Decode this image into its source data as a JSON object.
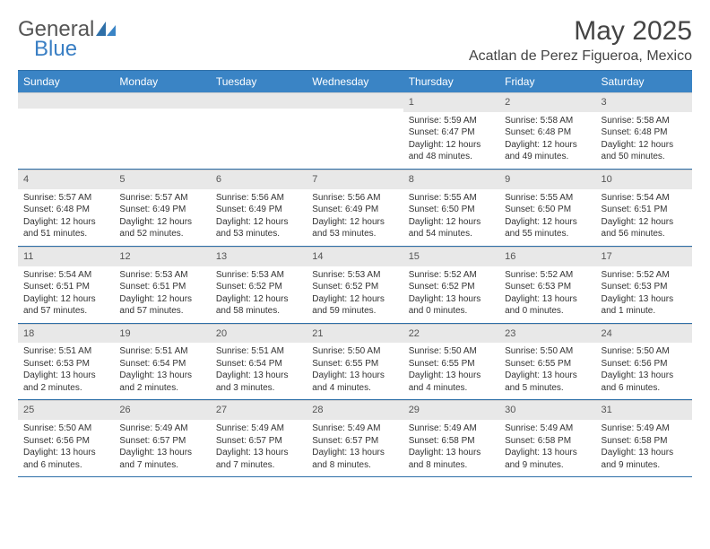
{
  "logo": {
    "general": "General",
    "blue": "Blue"
  },
  "title": "May 2025",
  "location": "Acatlan de Perez Figueroa, Mexico",
  "colors": {
    "header_bg": "#3a84c5",
    "header_border": "#2e6fa8",
    "daynum_bg": "#e8e8e8",
    "logo_blue": "#3a7fc4"
  },
  "day_headers": [
    "Sunday",
    "Monday",
    "Tuesday",
    "Wednesday",
    "Thursday",
    "Friday",
    "Saturday"
  ],
  "weeks": [
    [
      {
        "num": "",
        "sunrise": "",
        "sunset": "",
        "daylight1": "",
        "daylight2": ""
      },
      {
        "num": "",
        "sunrise": "",
        "sunset": "",
        "daylight1": "",
        "daylight2": ""
      },
      {
        "num": "",
        "sunrise": "",
        "sunset": "",
        "daylight1": "",
        "daylight2": ""
      },
      {
        "num": "",
        "sunrise": "",
        "sunset": "",
        "daylight1": "",
        "daylight2": ""
      },
      {
        "num": "1",
        "sunrise": "Sunrise: 5:59 AM",
        "sunset": "Sunset: 6:47 PM",
        "daylight1": "Daylight: 12 hours",
        "daylight2": "and 48 minutes."
      },
      {
        "num": "2",
        "sunrise": "Sunrise: 5:58 AM",
        "sunset": "Sunset: 6:48 PM",
        "daylight1": "Daylight: 12 hours",
        "daylight2": "and 49 minutes."
      },
      {
        "num": "3",
        "sunrise": "Sunrise: 5:58 AM",
        "sunset": "Sunset: 6:48 PM",
        "daylight1": "Daylight: 12 hours",
        "daylight2": "and 50 minutes."
      }
    ],
    [
      {
        "num": "4",
        "sunrise": "Sunrise: 5:57 AM",
        "sunset": "Sunset: 6:48 PM",
        "daylight1": "Daylight: 12 hours",
        "daylight2": "and 51 minutes."
      },
      {
        "num": "5",
        "sunrise": "Sunrise: 5:57 AM",
        "sunset": "Sunset: 6:49 PM",
        "daylight1": "Daylight: 12 hours",
        "daylight2": "and 52 minutes."
      },
      {
        "num": "6",
        "sunrise": "Sunrise: 5:56 AM",
        "sunset": "Sunset: 6:49 PM",
        "daylight1": "Daylight: 12 hours",
        "daylight2": "and 53 minutes."
      },
      {
        "num": "7",
        "sunrise": "Sunrise: 5:56 AM",
        "sunset": "Sunset: 6:49 PM",
        "daylight1": "Daylight: 12 hours",
        "daylight2": "and 53 minutes."
      },
      {
        "num": "8",
        "sunrise": "Sunrise: 5:55 AM",
        "sunset": "Sunset: 6:50 PM",
        "daylight1": "Daylight: 12 hours",
        "daylight2": "and 54 minutes."
      },
      {
        "num": "9",
        "sunrise": "Sunrise: 5:55 AM",
        "sunset": "Sunset: 6:50 PM",
        "daylight1": "Daylight: 12 hours",
        "daylight2": "and 55 minutes."
      },
      {
        "num": "10",
        "sunrise": "Sunrise: 5:54 AM",
        "sunset": "Sunset: 6:51 PM",
        "daylight1": "Daylight: 12 hours",
        "daylight2": "and 56 minutes."
      }
    ],
    [
      {
        "num": "11",
        "sunrise": "Sunrise: 5:54 AM",
        "sunset": "Sunset: 6:51 PM",
        "daylight1": "Daylight: 12 hours",
        "daylight2": "and 57 minutes."
      },
      {
        "num": "12",
        "sunrise": "Sunrise: 5:53 AM",
        "sunset": "Sunset: 6:51 PM",
        "daylight1": "Daylight: 12 hours",
        "daylight2": "and 57 minutes."
      },
      {
        "num": "13",
        "sunrise": "Sunrise: 5:53 AM",
        "sunset": "Sunset: 6:52 PM",
        "daylight1": "Daylight: 12 hours",
        "daylight2": "and 58 minutes."
      },
      {
        "num": "14",
        "sunrise": "Sunrise: 5:53 AM",
        "sunset": "Sunset: 6:52 PM",
        "daylight1": "Daylight: 12 hours",
        "daylight2": "and 59 minutes."
      },
      {
        "num": "15",
        "sunrise": "Sunrise: 5:52 AM",
        "sunset": "Sunset: 6:52 PM",
        "daylight1": "Daylight: 13 hours",
        "daylight2": "and 0 minutes."
      },
      {
        "num": "16",
        "sunrise": "Sunrise: 5:52 AM",
        "sunset": "Sunset: 6:53 PM",
        "daylight1": "Daylight: 13 hours",
        "daylight2": "and 0 minutes."
      },
      {
        "num": "17",
        "sunrise": "Sunrise: 5:52 AM",
        "sunset": "Sunset: 6:53 PM",
        "daylight1": "Daylight: 13 hours",
        "daylight2": "and 1 minute."
      }
    ],
    [
      {
        "num": "18",
        "sunrise": "Sunrise: 5:51 AM",
        "sunset": "Sunset: 6:53 PM",
        "daylight1": "Daylight: 13 hours",
        "daylight2": "and 2 minutes."
      },
      {
        "num": "19",
        "sunrise": "Sunrise: 5:51 AM",
        "sunset": "Sunset: 6:54 PM",
        "daylight1": "Daylight: 13 hours",
        "daylight2": "and 2 minutes."
      },
      {
        "num": "20",
        "sunrise": "Sunrise: 5:51 AM",
        "sunset": "Sunset: 6:54 PM",
        "daylight1": "Daylight: 13 hours",
        "daylight2": "and 3 minutes."
      },
      {
        "num": "21",
        "sunrise": "Sunrise: 5:50 AM",
        "sunset": "Sunset: 6:55 PM",
        "daylight1": "Daylight: 13 hours",
        "daylight2": "and 4 minutes."
      },
      {
        "num": "22",
        "sunrise": "Sunrise: 5:50 AM",
        "sunset": "Sunset: 6:55 PM",
        "daylight1": "Daylight: 13 hours",
        "daylight2": "and 4 minutes."
      },
      {
        "num": "23",
        "sunrise": "Sunrise: 5:50 AM",
        "sunset": "Sunset: 6:55 PM",
        "daylight1": "Daylight: 13 hours",
        "daylight2": "and 5 minutes."
      },
      {
        "num": "24",
        "sunrise": "Sunrise: 5:50 AM",
        "sunset": "Sunset: 6:56 PM",
        "daylight1": "Daylight: 13 hours",
        "daylight2": "and 6 minutes."
      }
    ],
    [
      {
        "num": "25",
        "sunrise": "Sunrise: 5:50 AM",
        "sunset": "Sunset: 6:56 PM",
        "daylight1": "Daylight: 13 hours",
        "daylight2": "and 6 minutes."
      },
      {
        "num": "26",
        "sunrise": "Sunrise: 5:49 AM",
        "sunset": "Sunset: 6:57 PM",
        "daylight1": "Daylight: 13 hours",
        "daylight2": "and 7 minutes."
      },
      {
        "num": "27",
        "sunrise": "Sunrise: 5:49 AM",
        "sunset": "Sunset: 6:57 PM",
        "daylight1": "Daylight: 13 hours",
        "daylight2": "and 7 minutes."
      },
      {
        "num": "28",
        "sunrise": "Sunrise: 5:49 AM",
        "sunset": "Sunset: 6:57 PM",
        "daylight1": "Daylight: 13 hours",
        "daylight2": "and 8 minutes."
      },
      {
        "num": "29",
        "sunrise": "Sunrise: 5:49 AM",
        "sunset": "Sunset: 6:58 PM",
        "daylight1": "Daylight: 13 hours",
        "daylight2": "and 8 minutes."
      },
      {
        "num": "30",
        "sunrise": "Sunrise: 5:49 AM",
        "sunset": "Sunset: 6:58 PM",
        "daylight1": "Daylight: 13 hours",
        "daylight2": "and 9 minutes."
      },
      {
        "num": "31",
        "sunrise": "Sunrise: 5:49 AM",
        "sunset": "Sunset: 6:58 PM",
        "daylight1": "Daylight: 13 hours",
        "daylight2": "and 9 minutes."
      }
    ]
  ]
}
